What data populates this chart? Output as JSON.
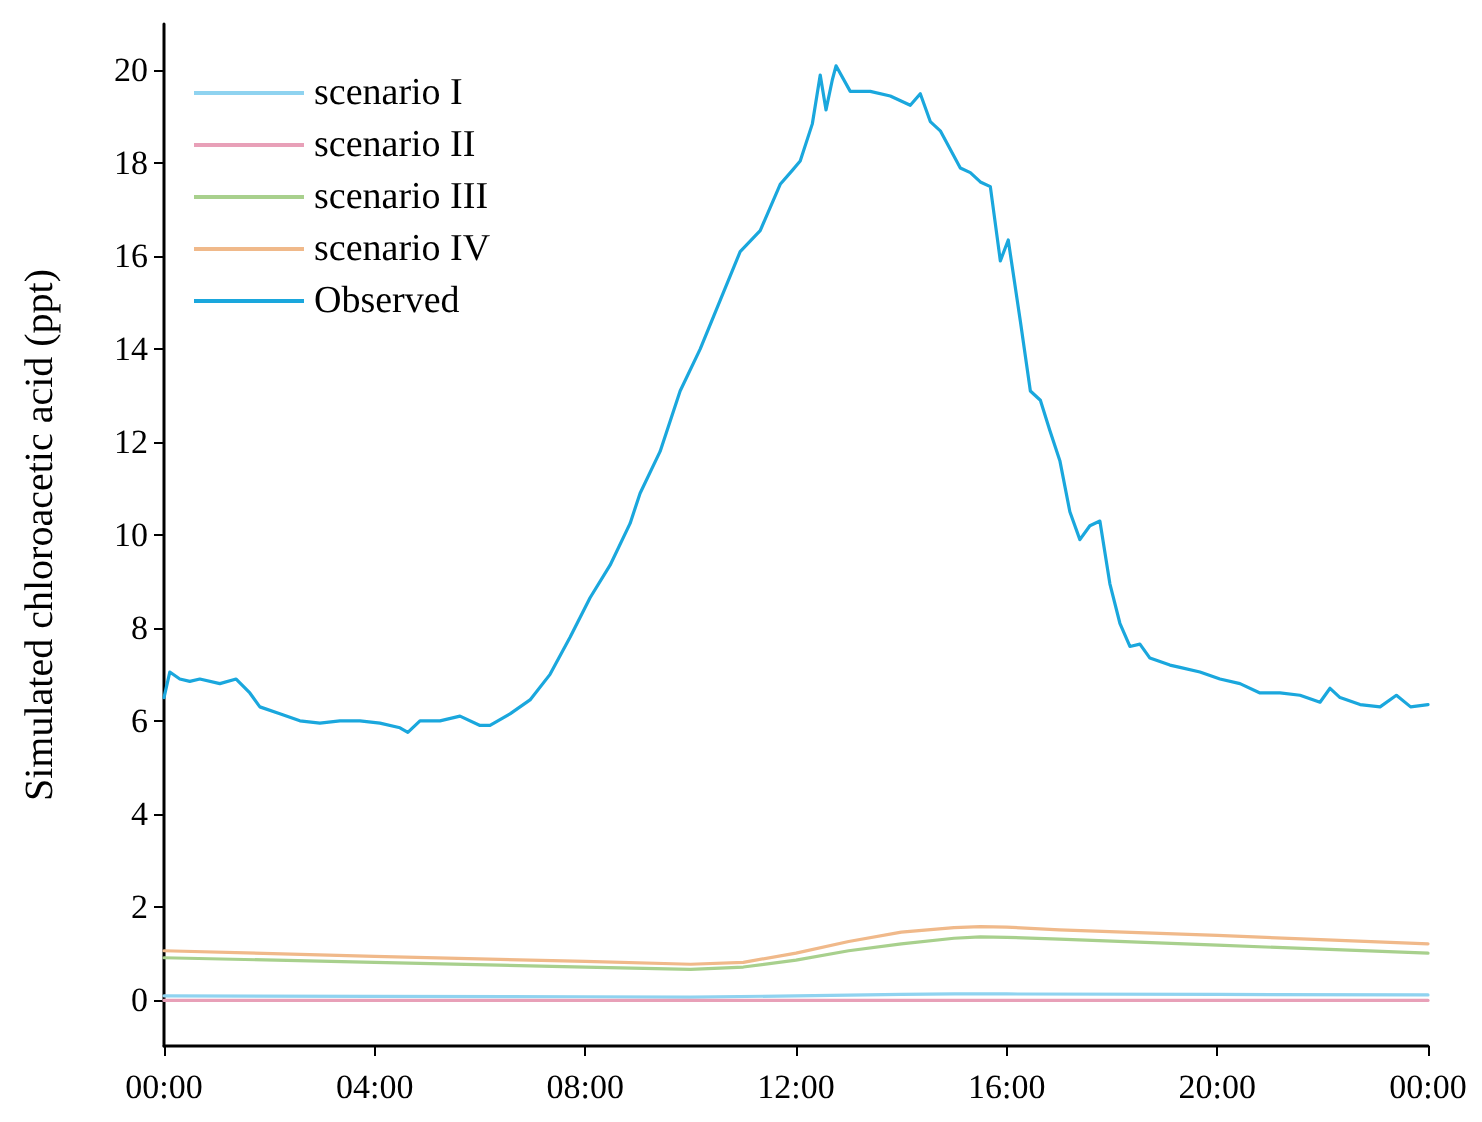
{
  "chart_data": {
    "type": "line",
    "ylabel": "Simulated chloroacetic acid (ppt)",
    "xlim": [
      0,
      24
    ],
    "xticks": [
      {
        "value": 0,
        "label": "00:00"
      },
      {
        "value": 4,
        "label": "04:00"
      },
      {
        "value": 8,
        "label": "08:00"
      },
      {
        "value": 12,
        "label": "12:00"
      },
      {
        "value": 16,
        "label": "16:00"
      },
      {
        "value": 20,
        "label": "20:00"
      },
      {
        "value": 24,
        "label": "00:00"
      }
    ],
    "ylim": [
      -1,
      21
    ],
    "yticks": [
      0,
      2,
      4,
      6,
      8,
      10,
      12,
      14,
      16,
      18,
      20
    ],
    "grid": false,
    "legend": "top left",
    "marker": "none",
    "line_style": "solid",
    "series": [
      {
        "name": "scenario I",
        "color": "#8fd3f0",
        "x": [
          0,
          4,
          8,
          10,
          12,
          14,
          15,
          16,
          20,
          24
        ],
        "values": [
          0.08,
          0.07,
          0.06,
          0.05,
          0.08,
          0.11,
          0.12,
          0.12,
          0.11,
          0.1
        ]
      },
      {
        "name": "scenario II",
        "color": "#e8a0b8",
        "x": [
          0,
          6,
          12,
          18,
          24
        ],
        "values": [
          -0.02,
          -0.02,
          -0.02,
          -0.02,
          -0.02
        ]
      },
      {
        "name": "scenario III",
        "color": "#a8d08d",
        "x": [
          0,
          4,
          8,
          10,
          11,
          12,
          13,
          14,
          15,
          15.5,
          16,
          17,
          20,
          24
        ],
        "values": [
          0.9,
          0.8,
          0.7,
          0.65,
          0.7,
          0.85,
          1.05,
          1.2,
          1.32,
          1.35,
          1.34,
          1.3,
          1.17,
          1.0
        ]
      },
      {
        "name": "scenario IV",
        "color": "#f0b98a",
        "x": [
          0,
          4,
          8,
          10,
          11,
          12,
          13,
          14,
          15,
          15.5,
          16,
          17,
          20,
          24
        ],
        "values": [
          1.05,
          0.93,
          0.82,
          0.76,
          0.8,
          1.0,
          1.25,
          1.45,
          1.55,
          1.57,
          1.56,
          1.5,
          1.38,
          1.2
        ]
      },
      {
        "name": "Observed",
        "color": "#1aa7dd",
        "x": [
          0,
          0.11,
          0.3,
          0.49,
          0.68,
          1.06,
          1.37,
          1.63,
          1.82,
          2.2,
          2.58,
          2.96,
          3.34,
          3.72,
          4.1,
          4.48,
          4.63,
          4.86,
          5.24,
          5.62,
          6.0,
          6.19,
          6.57,
          6.95,
          7.33,
          7.71,
          8.09,
          8.47,
          8.85,
          9.04,
          9.42,
          9.8,
          10.18,
          10.56,
          10.94,
          11.32,
          11.7,
          11.93,
          12.08,
          12.31,
          12.46,
          12.57,
          12.69,
          12.76,
          13.03,
          13.41,
          13.79,
          14.17,
          14.36,
          14.55,
          14.74,
          15.12,
          15.31,
          15.5,
          15.69,
          15.88,
          16.03,
          16.26,
          16.45,
          16.64,
          16.82,
          17.01,
          17.2,
          17.39,
          17.58,
          17.77,
          17.96,
          18.15,
          18.34,
          18.53,
          18.72,
          19.1,
          19.29,
          19.67,
          20.05,
          20.43,
          20.81,
          21.19,
          21.57,
          21.95,
          22.14,
          22.33,
          22.71,
          23.09,
          23.4,
          23.67,
          24
        ],
        "values": [
          6.5,
          7.05,
          6.9,
          6.85,
          6.9,
          6.8,
          6.9,
          6.6,
          6.3,
          6.15,
          6.0,
          5.95,
          6.0,
          6.0,
          5.95,
          5.85,
          5.75,
          6.0,
          6.0,
          6.1,
          5.9,
          5.9,
          6.15,
          6.45,
          7.0,
          7.8,
          8.65,
          9.35,
          10.25,
          10.9,
          11.8,
          13.1,
          14.0,
          15.05,
          16.1,
          16.55,
          17.55,
          17.85,
          18.05,
          18.85,
          19.9,
          19.15,
          19.8,
          20.1,
          19.55,
          19.55,
          19.45,
          19.25,
          19.5,
          18.9,
          18.7,
          17.9,
          17.8,
          17.6,
          17.5,
          15.9,
          16.35,
          14.6,
          13.1,
          12.9,
          12.25,
          11.6,
          10.5,
          9.9,
          10.2,
          10.3,
          8.95,
          8.1,
          7.6,
          7.65,
          7.35,
          7.2,
          7.15,
          7.05,
          6.9,
          6.8,
          6.6,
          6.6,
          6.55,
          6.4,
          6.7,
          6.5,
          6.35,
          6.3,
          6.55,
          6.3,
          6.35
        ]
      }
    ]
  }
}
